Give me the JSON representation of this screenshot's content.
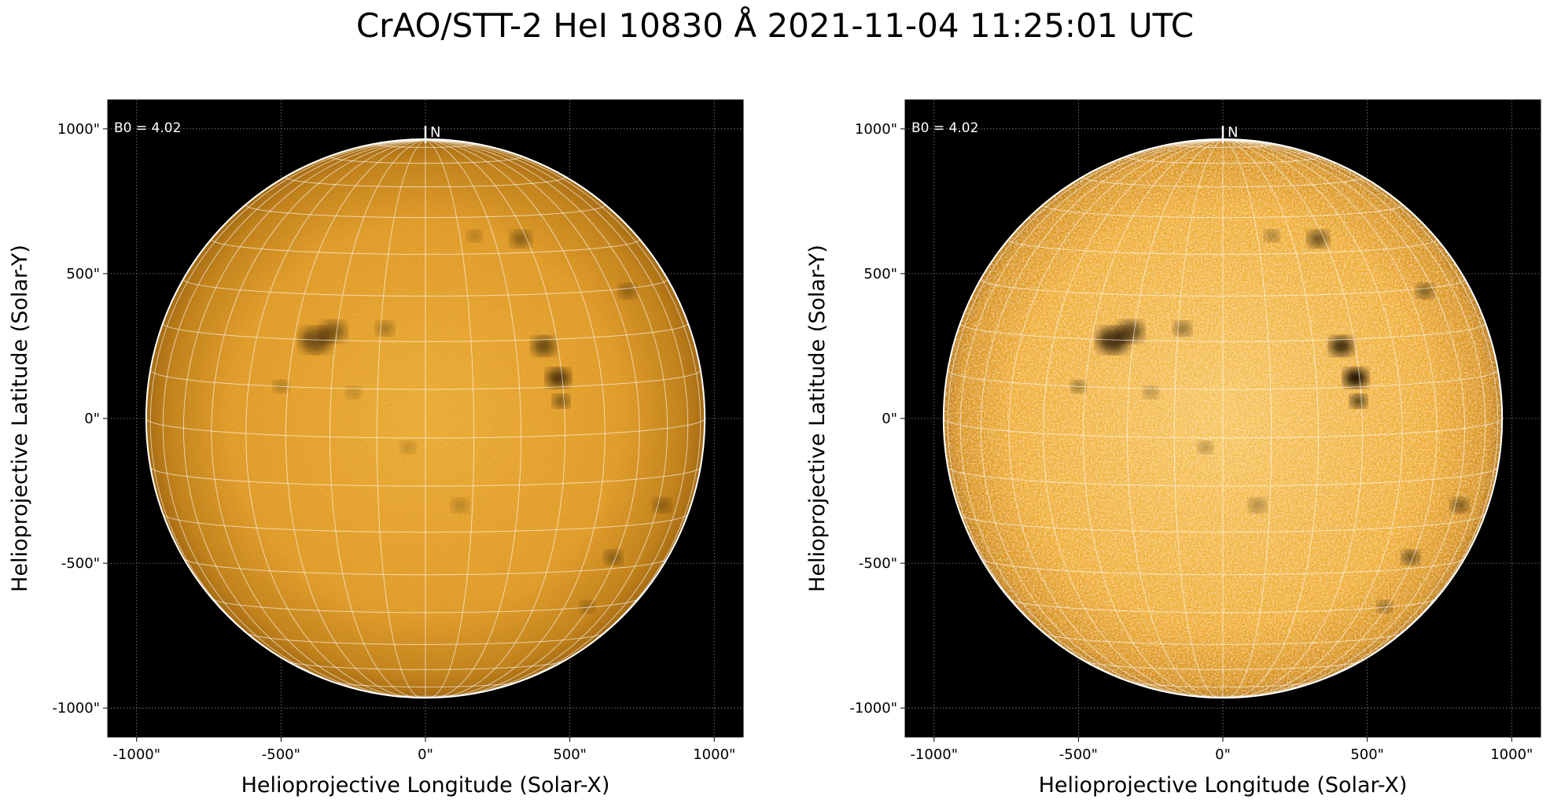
{
  "title": "CrAO/STT-2 HeI 10830 Å 2021-11-04 11:25:01 UTC",
  "colors": {
    "disk_center": "#f3b33a",
    "disk_edge": "#a86b10",
    "background": "#000000",
    "grid": "#ffffff"
  },
  "chart_data": [
    {
      "type": "heatmap",
      "panel": "left",
      "xlabel": "Helioprojective Longitude (Solar-X)",
      "ylabel": "Helioprojective Latitude (Solar-Y)",
      "xlim": [
        -1100,
        1100
      ],
      "ylim": [
        -1100,
        1100
      ],
      "x_ticks": [
        "-1000\"",
        "-500\"",
        "0\"",
        "500\"",
        "1000\""
      ],
      "y_ticks": [
        "1000\"",
        "500\"",
        "0\"",
        "-500\"",
        "-1000\""
      ],
      "tick_values": [
        -1000,
        -500,
        0,
        500,
        1000
      ],
      "b0_label": "B0 = 4.02",
      "north_label": "N",
      "solar_radius_arcsec": 967,
      "grid": true,
      "contrast": "normal"
    },
    {
      "type": "heatmap",
      "panel": "right",
      "xlabel": "Helioprojective Longitude (Solar-X)",
      "ylabel": "Helioprojective Latitude (Solar-Y)",
      "xlim": [
        -1100,
        1100
      ],
      "ylim": [
        -1100,
        1100
      ],
      "x_ticks": [
        "-1000\"",
        "-500\"",
        "0\"",
        "500\"",
        "1000\""
      ],
      "y_ticks": [
        "1000\"",
        "500\"",
        "0\"",
        "-500\"",
        "-1000\""
      ],
      "tick_values": [
        -1000,
        -500,
        0,
        500,
        1000
      ],
      "b0_label": "B0 = 4.02",
      "north_label": "N",
      "solar_radius_arcsec": 967,
      "grid": true,
      "contrast": "enhanced"
    }
  ]
}
